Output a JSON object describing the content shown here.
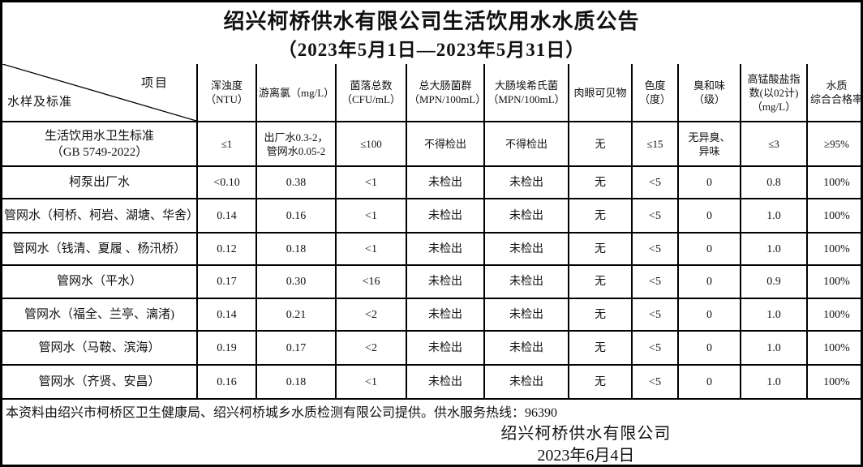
{
  "title": "绍兴柯桥供水有限公司生活饮用水水质公告",
  "subtitle": "（2023年5月1日—2023年5月31日）",
  "table": {
    "corner": {
      "item_label": "项目",
      "sample_label": "水样及标准"
    },
    "columns": [
      "浑浊度\n（NTU）",
      "游离氯（mg/L）",
      "菌落总数\n（CFU/mL）",
      "总大肠菌群\n（MPN/100mL）",
      "大肠埃希氏菌\n（MPN/100mL）",
      "肉眼可见物",
      "色度\n（度）",
      "臭和味\n（级）",
      "高锰酸盐指\n数(以02计)\n（mg/L）",
      "水质\n综合合格率"
    ],
    "rows": [
      {
        "label": "生活饮用水卫生标准\n（GB 5749-2022）",
        "values": [
          "≤1",
          "出厂水0.3-2，\n管网水0.05-2",
          "≤100",
          "不得检出",
          "不得检出",
          "无",
          "≤15",
          "无异臭、\n异味",
          "≤3",
          "≥95%"
        ]
      },
      {
        "label": "柯泵出厂水",
        "values": [
          "<0.10",
          "0.38",
          "<1",
          "未检出",
          "未检出",
          "无",
          "<5",
          "0",
          "0.8",
          "100%"
        ]
      },
      {
        "label": "管网水（柯桥、柯岩、湖塘、华舍）",
        "values": [
          "0.14",
          "0.16",
          "<1",
          "未检出",
          "未检出",
          "无",
          "<5",
          "0",
          "1.0",
          "100%"
        ]
      },
      {
        "label": "管网水（钱清、夏履 、杨汛桥）",
        "values": [
          "0.12",
          "0.18",
          "<1",
          "未检出",
          "未检出",
          "无",
          "<5",
          "0",
          "1.0",
          "100%"
        ]
      },
      {
        "label": "管网水（平水）",
        "values": [
          "0.17",
          "0.30",
          "<16",
          "未检出",
          "未检出",
          "无",
          "<5",
          "0",
          "0.9",
          "100%"
        ]
      },
      {
        "label": "管网水（福全、兰亭、漓渚)",
        "values": [
          "0.14",
          "0.21",
          "<2",
          "未检出",
          "未检出",
          "无",
          "<5",
          "0",
          "1.0",
          "100%"
        ]
      },
      {
        "label": "管网水（马鞍、滨海）",
        "values": [
          "0.19",
          "0.17",
          "<2",
          "未检出",
          "未检出",
          "无",
          "<5",
          "0",
          "1.0",
          "100%"
        ]
      },
      {
        "label": "管网水（齐贤、安昌）",
        "values": [
          "0.16",
          "0.18",
          "<1",
          "未检出",
          "未检出",
          "无",
          "<5",
          "0",
          "1.0",
          "100%"
        ]
      }
    ]
  },
  "footer": {
    "note": "本资料由绍兴市柯桥区卫生健康局、绍兴柯桥城乡水质检测有限公司提供。供水服务热线：96390",
    "company": "绍兴柯桥供水有限公司",
    "date": "2023年6月4日"
  },
  "colors": {
    "border": "#000000",
    "text": "#111111",
    "background": "#ffffff"
  }
}
